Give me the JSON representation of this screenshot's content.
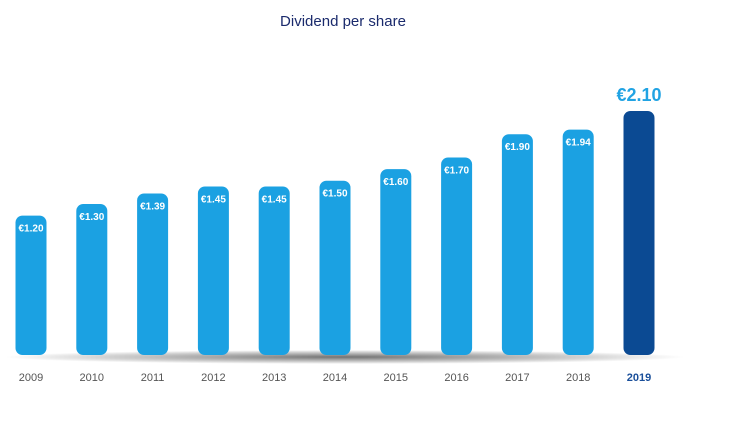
{
  "chart_data": {
    "type": "bar",
    "title": "Dividend per share",
    "xlabel": "",
    "ylabel": "",
    "categories": [
      "2009",
      "2010",
      "2011",
      "2012",
      "2013",
      "2014",
      "2015",
      "2016",
      "2017",
      "2018",
      "2019"
    ],
    "values": [
      1.2,
      1.3,
      1.39,
      1.45,
      1.45,
      1.5,
      1.6,
      1.7,
      1.9,
      1.94,
      2.1
    ],
    "value_labels": [
      "€1.20",
      "€1.30",
      "€1.39",
      "€1.45",
      "€1.45",
      "€1.50",
      "€1.60",
      "€1.70",
      "€1.90",
      "€1.94",
      "€2.10"
    ],
    "highlight_category": "2019",
    "ylim": [
      0,
      2.1
    ],
    "grid": false,
    "legend": "none",
    "colors": {
      "bar": "#1ba1e2",
      "bar_highlight": "#0b4a93",
      "title": "#1a2a6c",
      "highlight_label": "#21a3e3",
      "highlight_tick": "#1a4f9a"
    }
  }
}
